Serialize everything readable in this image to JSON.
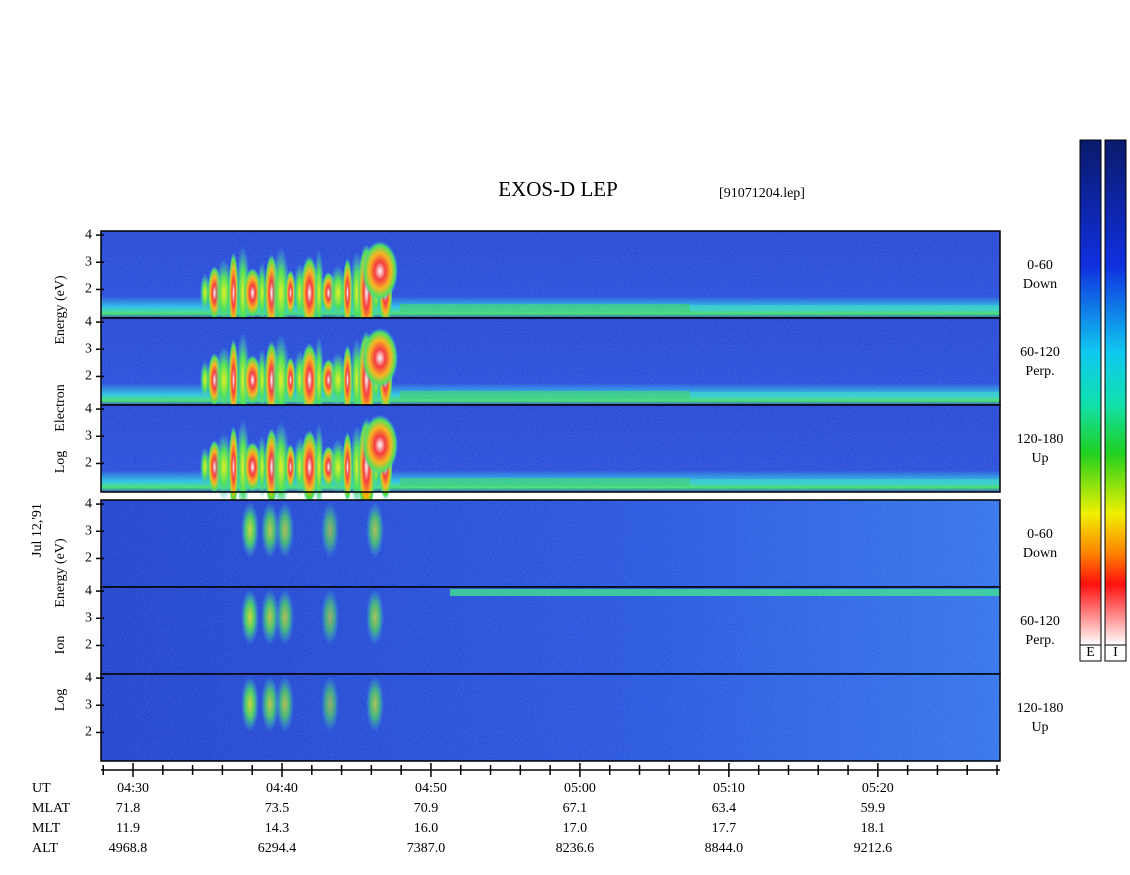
{
  "chart_data": {
    "type": "spectrogram",
    "title": "EXOS-D LEP",
    "file_label": "[91071204.lep]",
    "date_label": "Jul 12,'91",
    "xlim": [
      27.85,
      88.2
    ],
    "xticks": [
      {
        "value": 30,
        "label": "04:30"
      },
      {
        "value": 40,
        "label": "04:40"
      },
      {
        "value": 50,
        "label": "04:50"
      },
      {
        "value": 60,
        "label": "05:00"
      },
      {
        "value": 70,
        "label": "05:10"
      },
      {
        "value": 80,
        "label": "05:20"
      }
    ],
    "xminorticks": [
      28,
      32,
      34,
      36,
      38,
      42,
      44,
      46,
      48,
      52,
      54,
      56,
      58,
      62,
      64,
      66,
      68,
      72,
      74,
      76,
      78,
      82,
      84,
      86,
      88
    ],
    "x_row_label": "UT",
    "groups": [
      {
        "ylabel_words": [
          "Log",
          "Electron",
          "Energy (eV)"
        ],
        "panels": [
          {
            "label_lines": [
              "0-60",
              "Down"
            ],
            "ylim": [
              0.95,
              4.15
            ],
            "yticks": [
              2,
              3,
              4
            ]
          },
          {
            "label_lines": [
              "60-120",
              "Perp."
            ],
            "ylim": [
              0.95,
              4.15
            ],
            "yticks": [
              2,
              3,
              4
            ]
          },
          {
            "label_lines": [
              "120-180",
              "Up"
            ],
            "ylim": [
              0.95,
              4.15
            ],
            "yticks": [
              2,
              3,
              4
            ]
          }
        ]
      },
      {
        "ylabel_words": [
          "Log",
          "Ion",
          "Energy (eV)"
        ],
        "panels": [
          {
            "label_lines": [
              "0-60",
              "Down"
            ],
            "ylim": [
              0.95,
              4.15
            ],
            "yticks": [
              2,
              3,
              4
            ]
          },
          {
            "label_lines": [
              "60-120",
              "Perp."
            ],
            "ylim": [
              0.95,
              4.15
            ],
            "yticks": [
              2,
              3,
              4
            ]
          },
          {
            "label_lines": [
              "120-180",
              "Up"
            ],
            "ylim": [
              0.95,
              4.15
            ],
            "yticks": [
              2,
              3,
              4
            ]
          }
        ]
      }
    ],
    "ephemeris": [
      {
        "name": "MLAT",
        "values": [
          71.8,
          73.5,
          70.9,
          67.1,
          63.4,
          59.9
        ],
        "value_labels": [
          "71.8",
          "73.5",
          "70.9",
          "67.1",
          "63.4",
          "59.9"
        ]
      },
      {
        "name": "MLT",
        "values": [
          11.9,
          14.3,
          16,
          17,
          17.7,
          18.1
        ],
        "value_labels": [
          "11.9",
          "14.3",
          "16.0",
          "17.0",
          "17.7",
          "18.1"
        ]
      },
      {
        "name": "ALT",
        "values": [
          4968.8,
          6294.4,
          7387,
          8236.6,
          8844,
          9212.6
        ],
        "value_labels": [
          "4968.8",
          "6294.4",
          "7387.0",
          "8236.6",
          "8844.0",
          "9212.6"
        ]
      }
    ],
    "colorbars": [
      "E",
      "I"
    ]
  }
}
